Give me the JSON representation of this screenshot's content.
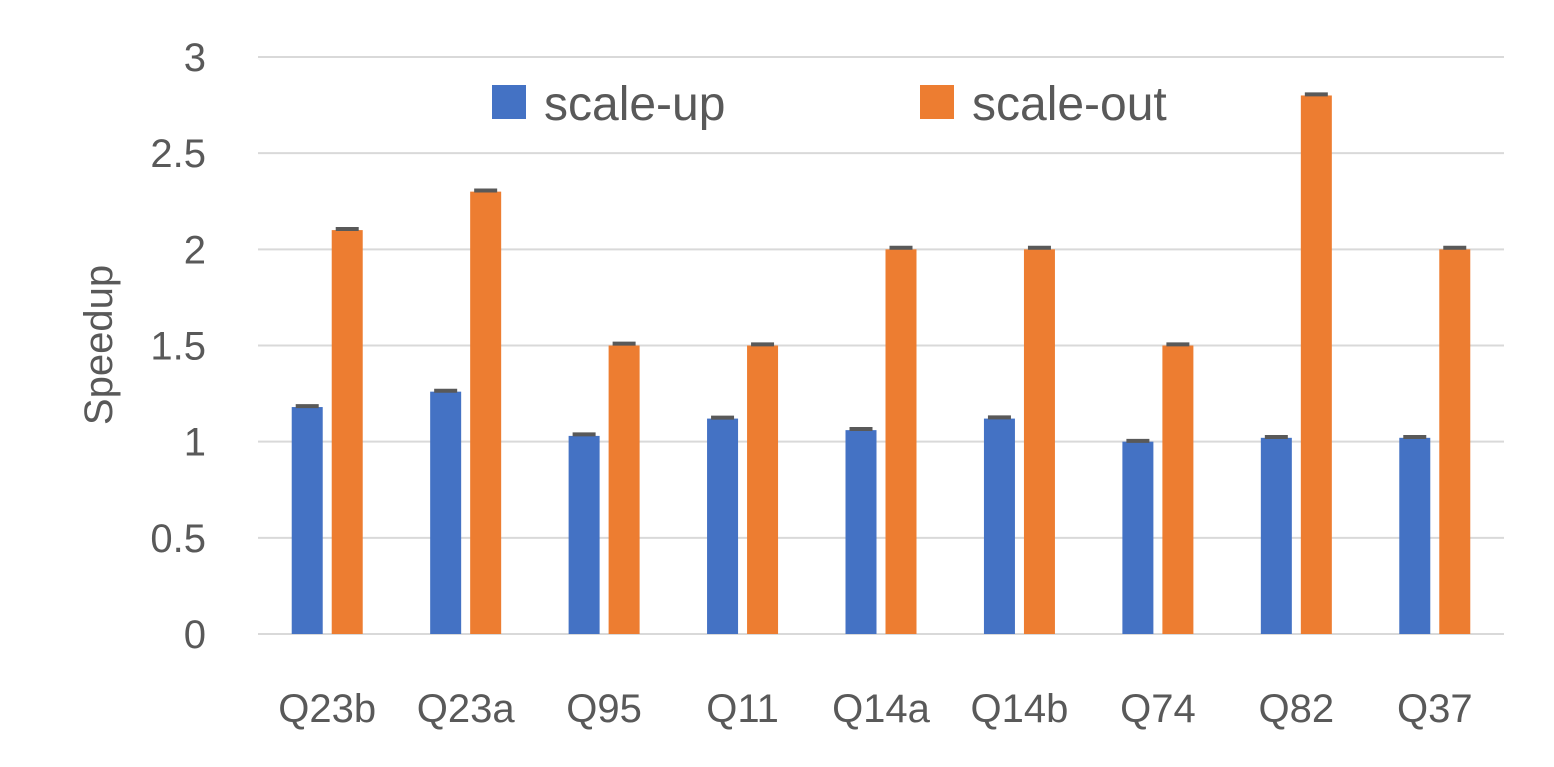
{
  "chart_data": {
    "type": "bar",
    "title": "",
    "xlabel": "",
    "ylabel": "Speedup",
    "ylim": [
      0,
      3
    ],
    "yticks": [
      0,
      0.5,
      1,
      1.5,
      2,
      2.5,
      3
    ],
    "ytick_labels": [
      "0",
      "0.5",
      "1",
      "1.5",
      "2",
      "2.5",
      "3"
    ],
    "grid": true,
    "legend_position": "top-center",
    "categories": [
      "Q23b",
      "Q23a",
      "Q95",
      "Q11",
      "Q14a",
      "Q14b",
      "Q74",
      "Q82",
      "Q37"
    ],
    "series": [
      {
        "name": "scale-up",
        "color": "#4472C4",
        "values": [
          1.18,
          1.26,
          1.03,
          1.12,
          1.06,
          1.12,
          1.0,
          1.02,
          1.02
        ],
        "error": [
          0.005,
          0.005,
          0.008,
          0.005,
          0.006,
          0.006,
          0.004,
          0.004,
          0.004
        ]
      },
      {
        "name": "scale-out",
        "color": "#ED7D31",
        "values": [
          2.1,
          2.3,
          1.5,
          1.5,
          2.0,
          2.0,
          1.5,
          2.8,
          2.0
        ],
        "error": [
          0.006,
          0.006,
          0.01,
          0.006,
          0.008,
          0.008,
          0.006,
          0.006,
          0.008
        ]
      }
    ]
  }
}
